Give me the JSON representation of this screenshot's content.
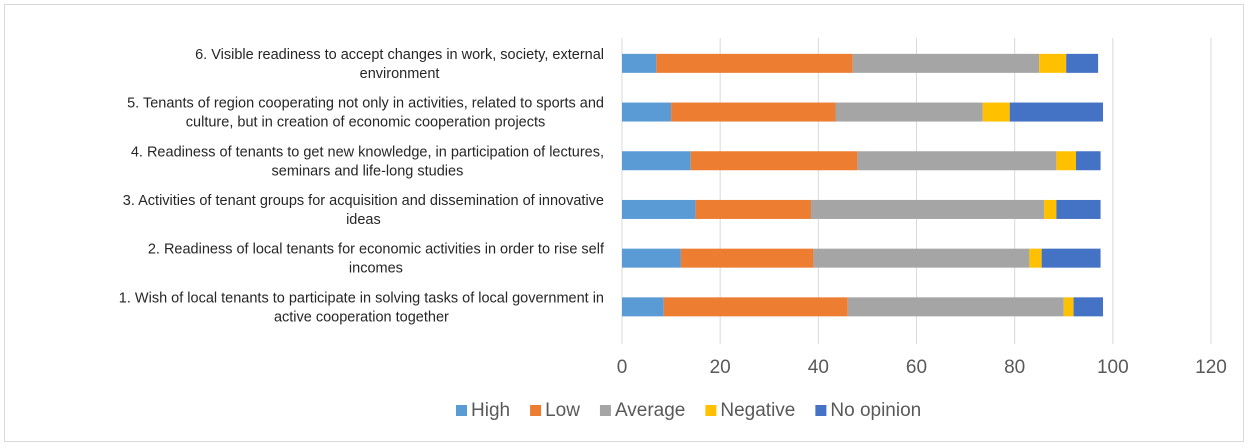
{
  "chart_data": {
    "type": "bar",
    "orientation": "horizontal",
    "stacked": true,
    "title": "",
    "xlabel": "",
    "ylabel": "",
    "xlim": [
      0,
      120
    ],
    "xticks": [
      "0",
      "20",
      "40",
      "60",
      "80",
      "100",
      "120"
    ],
    "grid": true,
    "legend_position": "bottom",
    "categories": [
      "1. Wish of local tenants to participate in solving tasks of local government in active cooperation together",
      "2. Readiness of local tenants for economic activities in order to rise self incomes",
      "3. Activities of tenant groups for acquisition and dissemination of innovative ideas",
      "4. Readiness of tenants to get new knowledge, in participation of lectures, seminars and life-long studies",
      "5. Tenants of region cooperating not only in activities, related to sports and culture, but in creation of economic cooperation projects",
      "6.  Visible readiness to accept changes in work, society, external environment"
    ],
    "category_lines": [
      [
        "1. Wish of local tenants to participate in solving tasks of local government in",
        "active cooperation together"
      ],
      [
        "2. Readiness of local tenants for economic activities in order to rise self",
        "incomes"
      ],
      [
        "3. Activities of tenant groups for acquisition and dissemination of innovative",
        "ideas"
      ],
      [
        "4. Readiness of tenants to get new knowledge, in participation of lectures,",
        "seminars and life-long studies"
      ],
      [
        "5. Tenants of region cooperating not only in activities, related to sports and",
        "culture, but in creation of economic cooperation projects"
      ],
      [
        "6.  Visible readiness to accept changes in work, society, external",
        "environment"
      ]
    ],
    "series": [
      {
        "name": "High",
        "color": "#5B9BD5",
        "values": [
          8.5,
          12,
          15,
          14,
          10,
          7
        ]
      },
      {
        "name": "Low",
        "color": "#ED7D31",
        "values": [
          37.5,
          27,
          23.5,
          34,
          33.5,
          40
        ]
      },
      {
        "name": "Average",
        "color": "#A5A5A5",
        "values": [
          44,
          44,
          47.5,
          40.5,
          30,
          38
        ]
      },
      {
        "name": "Negative",
        "color": "#FFC000",
        "values": [
          2,
          2.5,
          2.5,
          4,
          5.5,
          5.5
        ]
      },
      {
        "name": "No opinion",
        "color": "#4472C4",
        "values": [
          6,
          12,
          9,
          5,
          19,
          6.5
        ]
      }
    ]
  }
}
